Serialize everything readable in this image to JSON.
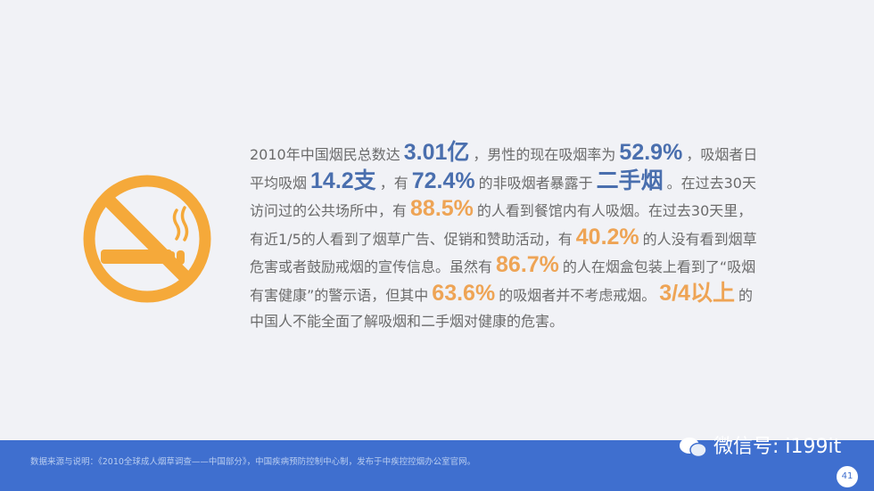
{
  "colors": {
    "background": "#f1f2f6",
    "icon": "#f5a93a",
    "blue_highlight": "#4a6fae",
    "orange_highlight": "#eea455",
    "footer": "#3f6fcf"
  },
  "icon": "no-smoking-icon",
  "paragraph": {
    "lines": [
      [
        {
          "t": "2010年中国烟民总数达",
          "h": ""
        },
        {
          "t": "3.01亿",
          "h": "blue"
        },
        {
          "t": "，男性的现在吸烟率为",
          "h": ""
        },
        {
          "t": "52.9%",
          "h": "blue"
        },
        {
          "t": "，吸烟者日",
          "h": ""
        }
      ],
      [
        {
          "t": "平均吸烟",
          "h": ""
        },
        {
          "t": "14.2支",
          "h": "blue"
        },
        {
          "t": "，有",
          "h": ""
        },
        {
          "t": "72.4%",
          "h": "blue"
        },
        {
          "t": "的非吸烟者暴露于",
          "h": ""
        },
        {
          "t": "二手烟",
          "h": "blue"
        },
        {
          "t": "。在过去30天",
          "h": ""
        }
      ],
      [
        {
          "t": "访问过的公共场所中，有",
          "h": ""
        },
        {
          "t": "88.5%",
          "h": "orange"
        },
        {
          "t": "的人看到餐馆内有人吸烟。在过去30天里，",
          "h": ""
        }
      ],
      [
        {
          "t": "有近1/5的人看到了烟草广告、促销和赞助活动，有",
          "h": ""
        },
        {
          "t": "40.2%",
          "h": "orange"
        },
        {
          "t": "的人没有看到烟草",
          "h": ""
        }
      ],
      [
        {
          "t": "危害或者鼓励戒烟的宣传信息。虽然有",
          "h": ""
        },
        {
          "t": "86.7%",
          "h": "orange"
        },
        {
          "t": "的人在烟盒包装上看到了“吸烟",
          "h": ""
        }
      ],
      [
        {
          "t": "有害健康”的警示语，但其中",
          "h": ""
        },
        {
          "t": "63.6%",
          "h": "orange"
        },
        {
          "t": "的吸烟者并不考虑戒烟。",
          "h": ""
        },
        {
          "t": "3/4以上",
          "h": "orange"
        },
        {
          "t": "的",
          "h": ""
        }
      ],
      [
        {
          "t": "中国人不能全面了解吸烟和二手烟对健康的危害。",
          "h": ""
        }
      ]
    ]
  },
  "footer": {
    "source": "数据来源与说明：《2010全球成人烟草调查——中国部分》，中国疾病预防控制中心制，发布于中疾控控烟办公室官网。",
    "wechat_icon": "wechat-icon",
    "wechat_label": "微信号: i199it",
    "page_number": "41"
  }
}
